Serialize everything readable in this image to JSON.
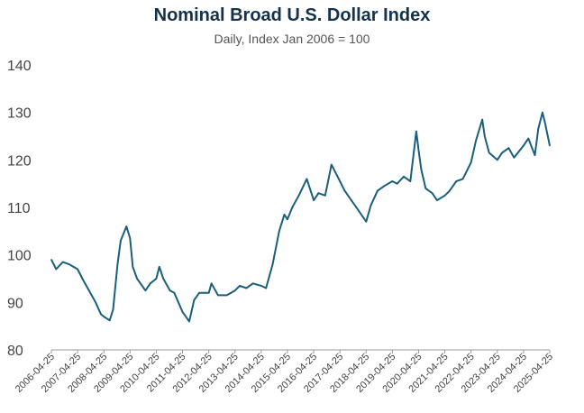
{
  "chart_data": {
    "type": "line",
    "title": "Nominal Broad U.S. Dollar Index",
    "subtitle": "Daily, Index Jan 2006 = 100",
    "xlabel": "",
    "ylabel": "",
    "ylim": [
      80,
      140
    ],
    "yticks": [
      80,
      90,
      100,
      110,
      120,
      130,
      140
    ],
    "xticks": [
      "2006-04-25",
      "2007-04-25",
      "2008-04-25",
      "2009-04-25",
      "2010-04-25",
      "2011-04-25",
      "2012-04-25",
      "2013-04-25",
      "2014-04-25",
      "2015-04-25",
      "2016-04-25",
      "2017-04-25",
      "2018-04-25",
      "2019-04-25",
      "2020-04-25",
      "2021-04-25",
      "2022-04-25",
      "2023-04-25",
      "2024-04-25",
      "2025-04-25"
    ],
    "grid": false,
    "line_color": "#1b5f7d",
    "series": [
      {
        "x": [
          "2006-04-25",
          "2006-07-01",
          "2006-10-01",
          "2007-01-01",
          "2007-04-25",
          "2007-07-01",
          "2007-10-01",
          "2008-01-01",
          "2008-03-15",
          "2008-04-25",
          "2008-07-15",
          "2008-09-01",
          "2008-11-01",
          "2008-12-15",
          "2009-03-05",
          "2009-04-25",
          "2009-06-01",
          "2009-08-01",
          "2009-11-25",
          "2010-02-01",
          "2010-04-25",
          "2010-06-07",
          "2010-08-01",
          "2010-11-01",
          "2011-01-01",
          "2011-04-25",
          "2011-07-28",
          "2011-10-04",
          "2011-12-15",
          "2012-04-25",
          "2012-06-01",
          "2012-09-01",
          "2013-01-01",
          "2013-04-25",
          "2013-07-01",
          "2013-10-01",
          "2014-01-01",
          "2014-04-25",
          "2014-07-01",
          "2014-10-01",
          "2015-01-01",
          "2015-03-13",
          "2015-04-25",
          "2015-07-01",
          "2015-10-01",
          "2016-01-20",
          "2016-04-25",
          "2016-07-01",
          "2016-10-01",
          "2016-12-28",
          "2017-04-25",
          "2017-07-01",
          "2017-10-01",
          "2018-01-01",
          "2018-04-25",
          "2018-07-01",
          "2018-10-01",
          "2019-01-01",
          "2019-04-25",
          "2019-07-01",
          "2019-10-01",
          "2020-01-01",
          "2020-03-23",
          "2020-04-25",
          "2020-06-01",
          "2020-08-01",
          "2020-11-01",
          "2021-01-06",
          "2021-04-25",
          "2021-07-01",
          "2021-10-01",
          "2022-01-01",
          "2022-04-25",
          "2022-07-01",
          "2022-09-28",
          "2022-11-01",
          "2023-01-01",
          "2023-04-25",
          "2023-07-01",
          "2023-10-01",
          "2023-12-15",
          "2024-04-25",
          "2024-07-01",
          "2024-09-30",
          "2024-11-15",
          "2025-01-13",
          "2025-02-15",
          "2025-04-25"
        ],
        "y": [
          99.0,
          97.0,
          98.5,
          98.0,
          97.0,
          95.0,
          92.5,
          90.0,
          87.5,
          87.0,
          86.2,
          88.5,
          98.0,
          103.0,
          106.0,
          103.5,
          97.5,
          95.0,
          92.5,
          94.0,
          95.0,
          97.5,
          95.0,
          92.5,
          92.0,
          88.0,
          86.0,
          90.5,
          92.0,
          92.0,
          94.0,
          91.5,
          91.5,
          92.5,
          93.5,
          93.0,
          94.0,
          93.5,
          93.0,
          98.0,
          105.0,
          108.5,
          107.5,
          110.0,
          112.5,
          116.0,
          111.5,
          113.0,
          112.5,
          119.0,
          115.5,
          113.5,
          111.5,
          109.5,
          107.0,
          110.5,
          113.5,
          114.5,
          115.5,
          115.0,
          116.5,
          115.5,
          126.0,
          122.0,
          118.0,
          114.0,
          113.0,
          111.5,
          112.5,
          113.5,
          115.5,
          116.0,
          119.5,
          124.0,
          128.5,
          125.0,
          121.5,
          120.0,
          121.5,
          122.5,
          120.5,
          123.0,
          124.5,
          121.0,
          126.5,
          130.0,
          128.0,
          123.0
        ]
      }
    ]
  }
}
